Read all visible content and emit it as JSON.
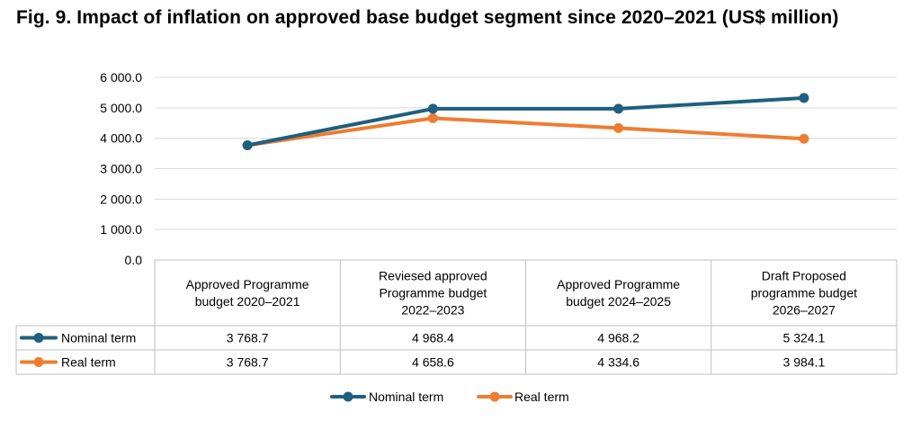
{
  "title": "Fig. 9. Impact of inflation on approved base budget segment since 2020–2021 (US$ million)",
  "chart_data": {
    "type": "line",
    "categories": [
      [
        "Approved Programme",
        "budget 2020–2021"
      ],
      [
        "Reviesed approved",
        "Programme budget",
        "2022–2023"
      ],
      [
        "Approved Programme",
        "budget 2024–2025"
      ],
      [
        "Draft Proposed",
        "programme budget",
        "2026–2027"
      ]
    ],
    "ylim": [
      0,
      6000
    ],
    "yticks": [
      0,
      1000,
      2000,
      3000,
      4000,
      5000,
      6000
    ],
    "ytick_labels": [
      "0.0",
      "1 000.0",
      "2 000.0",
      "3 000.0",
      "4 000.0",
      "5 000.0",
      "6 000.0"
    ],
    "grid": true,
    "legend_position": "bottom",
    "series": [
      {
        "name": "Nominal term",
        "color": "#1f5f7f",
        "values": [
          3768.7,
          4968.4,
          4968.2,
          5324.1
        ],
        "labels": [
          "3 768.7",
          "4 968.4",
          "4 968.2",
          "5 324.1"
        ]
      },
      {
        "name": "Real term",
        "color": "#ee7d31",
        "values": [
          3768.7,
          4658.6,
          4334.6,
          3984.1
        ],
        "labels": [
          "3 768.7",
          "4 658.6",
          "4 334.6",
          "3 984.1"
        ]
      }
    ]
  }
}
